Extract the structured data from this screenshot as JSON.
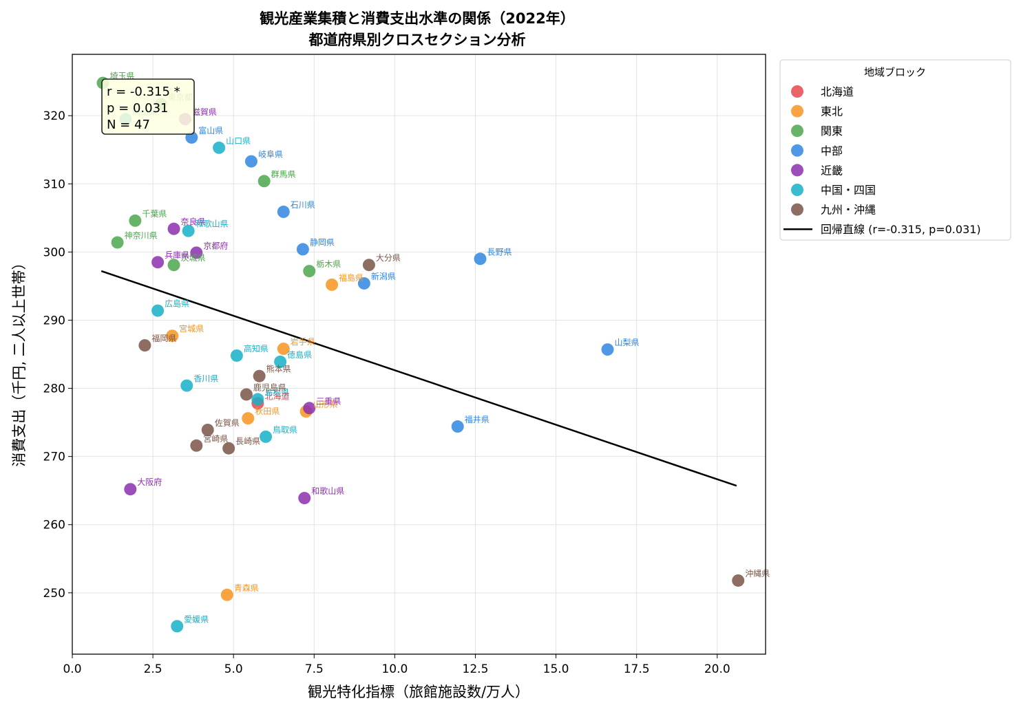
{
  "chart_data": {
    "type": "scatter",
    "title": [
      "観光産業集積と消費支出水準の関係（2022年）",
      "都道府県別クロスセクション分析"
    ],
    "xlabel": "観光特化指標（旅館施設数/万人）",
    "ylabel": "消費支出（千円, 二人以上世帯）",
    "xlim": [
      0,
      21.5
    ],
    "ylim": [
      241,
      329
    ],
    "xticks": [
      0.0,
      2.5,
      5.0,
      7.5,
      10.0,
      12.5,
      15.0,
      17.5,
      20.0
    ],
    "xtick_labels": [
      "0.0",
      "2.5",
      "5.0",
      "7.5",
      "10.0",
      "12.5",
      "15.0",
      "17.5",
      "20.0"
    ],
    "yticks": [
      250,
      260,
      270,
      280,
      290,
      300,
      310,
      320
    ],
    "ytick_labels": [
      "250",
      "260",
      "270",
      "280",
      "290",
      "300",
      "310",
      "320"
    ],
    "grid": true,
    "legend": {
      "title": "地域ブロック",
      "placement": "outside-upper-right",
      "regression_label": "回帰直線 (r=-0.315, p=0.031)"
    },
    "stats_box": [
      "r = -0.315 *",
      "p = 0.031",
      "N = 47"
    ],
    "regression": {
      "x": [
        0.9,
        20.6
      ],
      "y": [
        297.2,
        265.7
      ],
      "color": "#000000"
    },
    "series": [
      {
        "name": "北海道",
        "color": "#e8474c",
        "points": [
          {
            "label": "北海道",
            "x": 5.75,
            "y": 277.8
          }
        ]
      },
      {
        "name": "東北",
        "color": "#f7941e",
        "points": [
          {
            "label": "青森県",
            "x": 4.8,
            "y": 249.7
          },
          {
            "label": "岩手県",
            "x": 6.55,
            "y": 285.8
          },
          {
            "label": "宮城県",
            "x": 3.1,
            "y": 287.7
          },
          {
            "label": "秋田県",
            "x": 5.45,
            "y": 275.6
          },
          {
            "label": "山形県",
            "x": 7.25,
            "y": 276.6
          },
          {
            "label": "福島県",
            "x": 8.05,
            "y": 295.2
          }
        ]
      },
      {
        "name": "関東",
        "color": "#4ca64c",
        "points": [
          {
            "label": "茨城県",
            "x": 3.15,
            "y": 298.1
          },
          {
            "label": "栃木県",
            "x": 7.35,
            "y": 297.2
          },
          {
            "label": "群馬県",
            "x": 5.95,
            "y": 310.4
          },
          {
            "label": "埼玉県",
            "x": 0.95,
            "y": 324.8
          },
          {
            "label": "千葉県",
            "x": 1.95,
            "y": 304.6
          },
          {
            "label": "東京都",
            "x": 2.75,
            "y": 321.7
          },
          {
            "label": "神奈川県",
            "x": 1.4,
            "y": 301.4
          }
        ]
      },
      {
        "name": "中部",
        "color": "#2f86e0",
        "points": [
          {
            "label": "新潟県",
            "x": 9.05,
            "y": 295.4
          },
          {
            "label": "富山県",
            "x": 3.7,
            "y": 316.8
          },
          {
            "label": "石川県",
            "x": 6.55,
            "y": 305.9
          },
          {
            "label": "福井県",
            "x": 11.95,
            "y": 274.4
          },
          {
            "label": "山梨県",
            "x": 16.6,
            "y": 285.7
          },
          {
            "label": "長野県",
            "x": 12.65,
            "y": 299.0
          },
          {
            "label": "岐阜県",
            "x": 5.55,
            "y": 313.3
          },
          {
            "label": "静岡県",
            "x": 7.15,
            "y": 300.4
          }
        ]
      },
      {
        "name": "近畿",
        "color": "#8b2fae",
        "points": [
          {
            "label": "三重県",
            "x": 7.35,
            "y": 277.1
          },
          {
            "label": "滋賀県",
            "x": 3.5,
            "y": 319.5
          },
          {
            "label": "京都府",
            "x": 3.85,
            "y": 299.9
          },
          {
            "label": "大阪府",
            "x": 1.8,
            "y": 265.2
          },
          {
            "label": "兵庫県",
            "x": 2.65,
            "y": 298.5
          },
          {
            "label": "奈良県",
            "x": 3.15,
            "y": 303.4
          },
          {
            "label": "和歌山県",
            "x": 7.2,
            "y": 263.9
          }
        ]
      },
      {
        "name": "中国・四国",
        "color": "#17b0c8",
        "points": [
          {
            "label": "鳥取県",
            "x": 6.0,
            "y": 272.9
          },
          {
            "label": "島根県",
            "x": 5.75,
            "y": 278.4
          },
          {
            "label": "岡山県",
            "x": 1.65,
            "y": 319.5
          },
          {
            "label": "広島県",
            "x": 2.65,
            "y": 291.4
          },
          {
            "label": "山口県",
            "x": 4.55,
            "y": 315.3
          },
          {
            "label": "徳島県",
            "x": 6.45,
            "y": 283.9
          },
          {
            "label": "香川県",
            "x": 3.55,
            "y": 280.4
          },
          {
            "label": "愛媛県",
            "x": 3.25,
            "y": 245.1
          },
          {
            "label": "高知県",
            "x": 5.1,
            "y": 284.8
          },
          {
            "label": "和歌山県",
            "x": 3.6,
            "y": 303.1
          }
        ]
      },
      {
        "name": "九州・沖縄",
        "color": "#7a5548",
        "points": [
          {
            "label": "福岡県",
            "x": 2.25,
            "y": 286.3
          },
          {
            "label": "佐賀県",
            "x": 4.2,
            "y": 273.9
          },
          {
            "label": "長崎県",
            "x": 4.85,
            "y": 271.2
          },
          {
            "label": "熊本県",
            "x": 5.8,
            "y": 281.8
          },
          {
            "label": "大分県",
            "x": 9.2,
            "y": 298.1
          },
          {
            "label": "宮崎県",
            "x": 3.85,
            "y": 271.6
          },
          {
            "label": "鹿児島県",
            "x": 5.4,
            "y": 279.1
          },
          {
            "label": "沖縄県",
            "x": 20.65,
            "y": 251.8
          }
        ]
      }
    ]
  }
}
